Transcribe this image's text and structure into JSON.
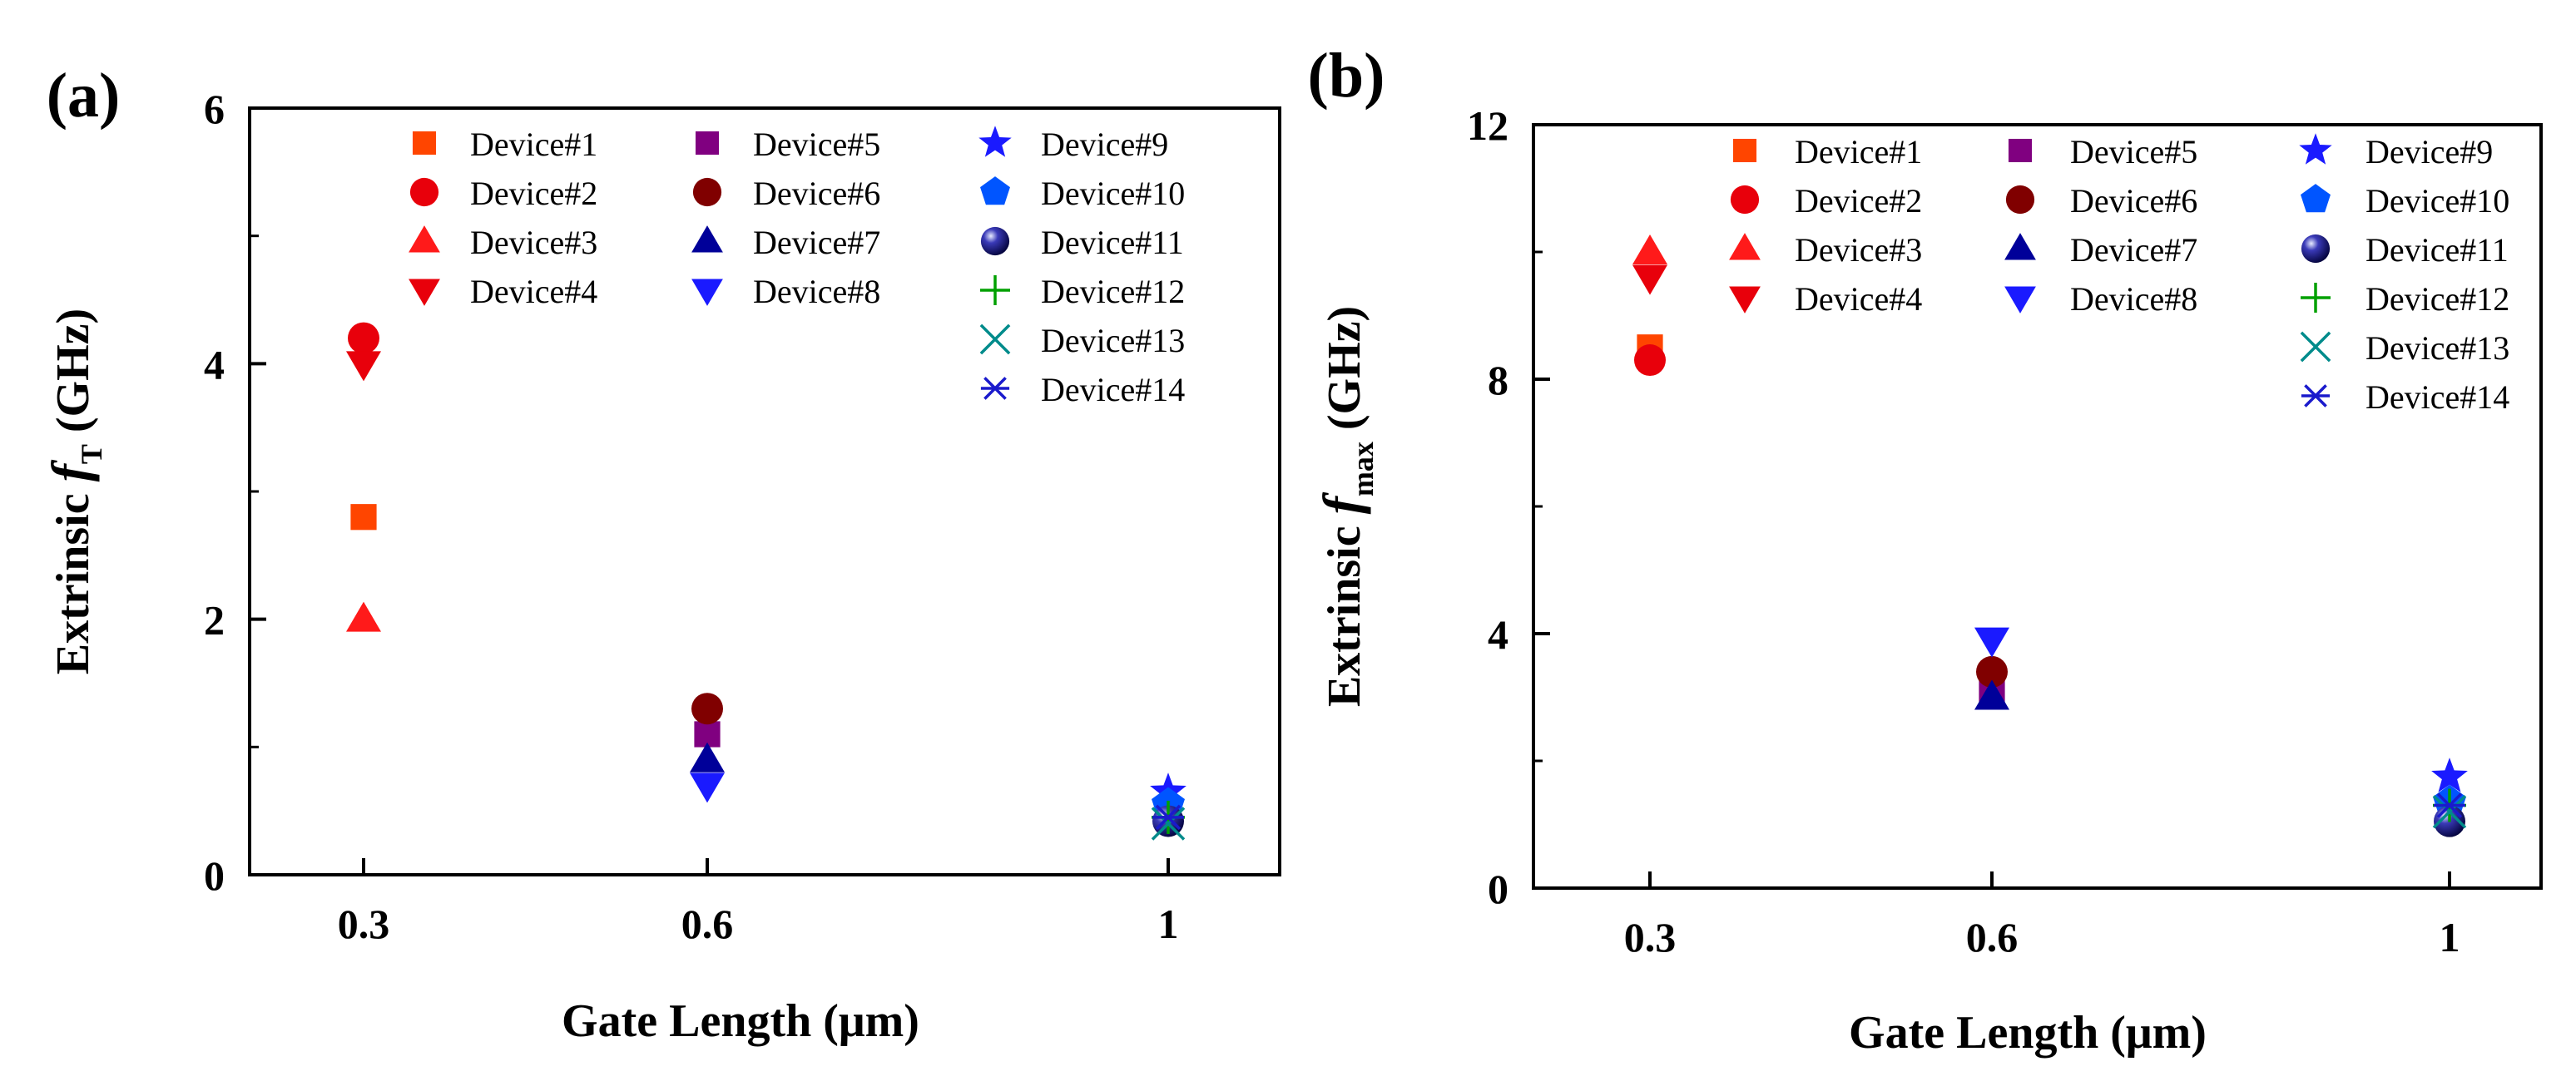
{
  "chart_data": [
    {
      "type": "scatter",
      "panel_label": "(a)",
      "ylabel": {
        "prefix": "Extrinsic ",
        "symbol": "f",
        "subscript": "T",
        "suffix": " (GHz)"
      },
      "xlabel": "Gate Length (μm)",
      "categories": [
        "0.3",
        "0.6",
        "1"
      ],
      "ylim": [
        0,
        6
      ],
      "yticks": [
        0,
        2,
        4,
        6
      ],
      "series": [
        {
          "name": "Device#1",
          "marker": "square",
          "color": "#ff4500",
          "points": [
            {
              "x": "0.3",
              "y": 2.8
            }
          ]
        },
        {
          "name": "Device#2",
          "marker": "circle",
          "color": "#e8000b",
          "points": [
            {
              "x": "0.3",
              "y": 4.2
            }
          ]
        },
        {
          "name": "Device#3",
          "marker": "triangle",
          "color": "#ff1a1a",
          "points": [
            {
              "x": "0.3",
              "y": 2.0
            }
          ]
        },
        {
          "name": "Device#4",
          "marker": "tri-down",
          "color": "#e8000b",
          "points": [
            {
              "x": "0.3",
              "y": 4.0
            }
          ]
        },
        {
          "name": "Device#5",
          "marker": "square",
          "color": "#800080",
          "points": [
            {
              "x": "0.6",
              "y": 1.1
            }
          ]
        },
        {
          "name": "Device#6",
          "marker": "circle",
          "color": "#800000",
          "points": [
            {
              "x": "0.6",
              "y": 1.3
            }
          ]
        },
        {
          "name": "Device#7",
          "marker": "triangle",
          "color": "#000099",
          "points": [
            {
              "x": "0.6",
              "y": 0.9
            }
          ]
        },
        {
          "name": "Device#8",
          "marker": "tri-down",
          "color": "#1a1aff",
          "points": [
            {
              "x": "0.6",
              "y": 0.7
            }
          ]
        },
        {
          "name": "Device#9",
          "marker": "star",
          "color": "#1a1aff",
          "points": [
            {
              "x": "1",
              "y": 0.65
            }
          ]
        },
        {
          "name": "Device#10",
          "marker": "pentagon",
          "color": "#0055ff",
          "points": [
            {
              "x": "1",
              "y": 0.55
            }
          ]
        },
        {
          "name": "Device#11",
          "marker": "sphere",
          "color": "#0a0a66",
          "points": [
            {
              "x": "1",
              "y": 0.42
            }
          ]
        },
        {
          "name": "Device#12",
          "marker": "plus",
          "color": "#00a000",
          "points": [
            {
              "x": "1",
              "y": 0.45
            }
          ]
        },
        {
          "name": "Device#13",
          "marker": "cross",
          "color": "#008b8b",
          "points": [
            {
              "x": "1",
              "y": 0.4
            }
          ]
        },
        {
          "name": "Device#14",
          "marker": "asterisk",
          "color": "#1a1acc",
          "points": [
            {
              "x": "1",
              "y": 0.45
            }
          ]
        }
      ]
    },
    {
      "type": "scatter",
      "panel_label": "(b)",
      "ylabel": {
        "prefix": "Extrinsic ",
        "symbol": "f",
        "subscript": "max",
        "suffix": " (GHz)"
      },
      "xlabel": "Gate Length (μm)",
      "categories": [
        "0.3",
        "0.6",
        "1"
      ],
      "ylim": [
        0,
        12
      ],
      "yticks": [
        0,
        4,
        8,
        12
      ],
      "series": [
        {
          "name": "Device#1",
          "marker": "square",
          "color": "#ff4500",
          "points": [
            {
              "x": "0.3",
              "y": 8.5
            }
          ]
        },
        {
          "name": "Device#2",
          "marker": "circle",
          "color": "#e8000b",
          "points": [
            {
              "x": "0.3",
              "y": 8.3
            }
          ]
        },
        {
          "name": "Device#3",
          "marker": "triangle",
          "color": "#ff1a1a",
          "points": [
            {
              "x": "0.3",
              "y": 10.0
            }
          ]
        },
        {
          "name": "Device#4",
          "marker": "tri-down",
          "color": "#e8000b",
          "points": [
            {
              "x": "0.3",
              "y": 9.6
            }
          ]
        },
        {
          "name": "Device#5",
          "marker": "square",
          "color": "#800080",
          "points": [
            {
              "x": "0.6",
              "y": 3.1
            }
          ]
        },
        {
          "name": "Device#6",
          "marker": "circle",
          "color": "#800000",
          "points": [
            {
              "x": "0.6",
              "y": 3.4
            }
          ]
        },
        {
          "name": "Device#7",
          "marker": "triangle",
          "color": "#000099",
          "points": [
            {
              "x": "0.6",
              "y": 3.0
            }
          ]
        },
        {
          "name": "Device#8",
          "marker": "tri-down",
          "color": "#1a1aff",
          "points": [
            {
              "x": "0.6",
              "y": 3.9
            }
          ]
        },
        {
          "name": "Device#9",
          "marker": "star",
          "color": "#1a1aff",
          "points": [
            {
              "x": "1",
              "y": 1.75
            }
          ]
        },
        {
          "name": "Device#10",
          "marker": "pentagon",
          "color": "#0055ff",
          "points": [
            {
              "x": "1",
              "y": 1.35
            }
          ]
        },
        {
          "name": "Device#11",
          "marker": "sphere",
          "color": "#0a0a66",
          "points": [
            {
              "x": "1",
              "y": 1.05
            }
          ]
        },
        {
          "name": "Device#12",
          "marker": "plus",
          "color": "#00a000",
          "points": [
            {
              "x": "1",
              "y": 1.3
            }
          ]
        },
        {
          "name": "Device#13",
          "marker": "cross",
          "color": "#008b8b",
          "points": [
            {
              "x": "1",
              "y": 1.2
            }
          ]
        },
        {
          "name": "Device#14",
          "marker": "asterisk",
          "color": "#1a1acc",
          "points": [
            {
              "x": "1",
              "y": 1.3
            }
          ]
        }
      ]
    }
  ]
}
